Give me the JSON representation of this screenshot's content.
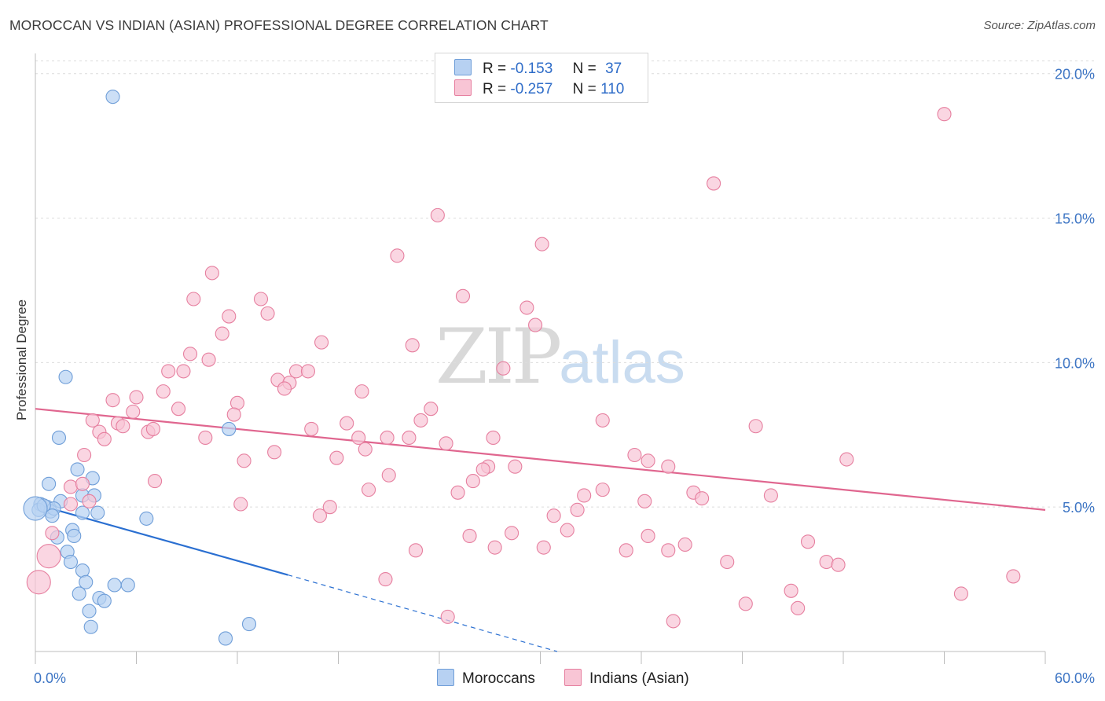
{
  "header": {
    "title": "MOROCCAN VS INDIAN (ASIAN) PROFESSIONAL DEGREE CORRELATION CHART",
    "source": "Source: ZipAtlas.com"
  },
  "watermark": {
    "zip": "ZIP",
    "atlas": "atlas"
  },
  "legend": {
    "r_label": "R =",
    "n_label": "N =",
    "rows": [
      {
        "r": "-0.153",
        "n": "37",
        "color": "#9fc3ee"
      },
      {
        "r": "-0.257",
        "n": "110",
        "color": "#f5b8cb"
      }
    ]
  },
  "bottom_legend": {
    "moroccans": "Moroccans",
    "indians": "Indians (Asian)"
  },
  "chart_data": {
    "type": "scatter",
    "title": "MOROCCAN VS INDIAN (ASIAN) PROFESSIONAL DEGREE CORRELATION CHART",
    "xlabel": "",
    "ylabel": "Professional Degree",
    "xlim": [
      0,
      60
    ],
    "ylim": [
      0,
      20.7
    ],
    "x_tick_labels": [
      "0.0%",
      "60.0%"
    ],
    "y_ticks": [
      5,
      10,
      15,
      20
    ],
    "y_tick_labels": [
      "5.0%",
      "10.0%",
      "15.0%",
      "20.0%"
    ],
    "grid": true,
    "series": [
      {
        "name": "Moroccans",
        "color": "#6f9ed8",
        "fill": "#b7d1f2",
        "points": [
          [
            4.6,
            19.2
          ],
          [
            1.8,
            9.5
          ],
          [
            1.4,
            7.4
          ],
          [
            11.5,
            7.7
          ],
          [
            2.5,
            6.3
          ],
          [
            0.8,
            5.8
          ],
          [
            3.4,
            6.0
          ],
          [
            2.8,
            5.4
          ],
          [
            3.5,
            5.4
          ],
          [
            1.5,
            5.2
          ],
          [
            0.3,
            5.1
          ],
          [
            0.7,
            5.0
          ],
          [
            0.2,
            4.9
          ],
          [
            0.9,
            4.85
          ],
          [
            1.1,
            4.95
          ],
          [
            0.5,
            5.05
          ],
          [
            1.0,
            4.7
          ],
          [
            2.8,
            4.8
          ],
          [
            3.7,
            4.8
          ],
          [
            6.6,
            4.6
          ],
          [
            2.2,
            4.2
          ],
          [
            1.3,
            3.95
          ],
          [
            2.3,
            4.0
          ],
          [
            1.9,
            3.45
          ],
          [
            2.1,
            3.1
          ],
          [
            2.8,
            2.8
          ],
          [
            3.0,
            2.4
          ],
          [
            4.7,
            2.3
          ],
          [
            5.5,
            2.3
          ],
          [
            2.6,
            2.0
          ],
          [
            3.8,
            1.85
          ],
          [
            4.1,
            1.75
          ],
          [
            3.2,
            1.4
          ],
          [
            3.3,
            0.85
          ],
          [
            12.7,
            0.95
          ],
          [
            11.3,
            0.45
          ]
        ],
        "big_points": [
          [
            0.0,
            4.95
          ]
        ],
        "trend": {
          "x0": 0,
          "y0": 5.1,
          "x1": 15,
          "y1": 2.65,
          "dash_x1": 31,
          "dash_y1": 0
        }
      },
      {
        "name": "Indians (Asian)",
        "color": "#e67f9f",
        "fill": "#f8c5d5",
        "points": [
          [
            54.0,
            18.6
          ],
          [
            40.3,
            16.2
          ],
          [
            23.9,
            15.1
          ],
          [
            30.1,
            14.1
          ],
          [
            21.5,
            13.7
          ],
          [
            10.5,
            13.1
          ],
          [
            25.4,
            12.3
          ],
          [
            9.4,
            12.2
          ],
          [
            13.4,
            12.2
          ],
          [
            29.2,
            11.9
          ],
          [
            11.5,
            11.6
          ],
          [
            13.8,
            11.7
          ],
          [
            29.7,
            11.3
          ],
          [
            11.1,
            11.0
          ],
          [
            17.0,
            10.7
          ],
          [
            22.4,
            10.6
          ],
          [
            9.2,
            10.3
          ],
          [
            10.3,
            10.1
          ],
          [
            7.9,
            9.7
          ],
          [
            8.8,
            9.7
          ],
          [
            15.5,
            9.7
          ],
          [
            16.2,
            9.7
          ],
          [
            27.8,
            9.8
          ],
          [
            14.4,
            9.4
          ],
          [
            15.1,
            9.3
          ],
          [
            14.8,
            9.1
          ],
          [
            7.6,
            9.0
          ],
          [
            19.4,
            9.0
          ],
          [
            6.0,
            8.8
          ],
          [
            4.6,
            8.7
          ],
          [
            12.0,
            8.6
          ],
          [
            23.5,
            8.4
          ],
          [
            5.8,
            8.3
          ],
          [
            8.5,
            8.4
          ],
          [
            11.8,
            8.2
          ],
          [
            22.9,
            8.0
          ],
          [
            3.4,
            8.0
          ],
          [
            4.9,
            7.9
          ],
          [
            18.5,
            7.9
          ],
          [
            33.7,
            8.0
          ],
          [
            42.8,
            7.8
          ],
          [
            3.8,
            7.6
          ],
          [
            5.2,
            7.8
          ],
          [
            6.7,
            7.6
          ],
          [
            7.0,
            7.7
          ],
          [
            16.4,
            7.7
          ],
          [
            10.1,
            7.4
          ],
          [
            4.1,
            7.35
          ],
          [
            19.2,
            7.4
          ],
          [
            20.9,
            7.4
          ],
          [
            22.2,
            7.4
          ],
          [
            24.4,
            7.2
          ],
          [
            27.2,
            7.4
          ],
          [
            19.6,
            7.0
          ],
          [
            14.2,
            6.9
          ],
          [
            17.9,
            6.7
          ],
          [
            2.9,
            6.8
          ],
          [
            35.6,
            6.8
          ],
          [
            12.4,
            6.6
          ],
          [
            36.4,
            6.6
          ],
          [
            48.2,
            6.65
          ],
          [
            26.9,
            6.4
          ],
          [
            26.6,
            6.3
          ],
          [
            28.5,
            6.4
          ],
          [
            37.6,
            6.4
          ],
          [
            21.0,
            6.1
          ],
          [
            7.1,
            5.9
          ],
          [
            26.0,
            5.9
          ],
          [
            2.1,
            5.7
          ],
          [
            2.8,
            5.8
          ],
          [
            19.8,
            5.6
          ],
          [
            25.1,
            5.5
          ],
          [
            33.7,
            5.6
          ],
          [
            39.1,
            5.5
          ],
          [
            39.6,
            5.3
          ],
          [
            43.7,
            5.4
          ],
          [
            32.6,
            5.4
          ],
          [
            36.2,
            5.2
          ],
          [
            2.1,
            5.1
          ],
          [
            3.2,
            5.2
          ],
          [
            12.2,
            5.1
          ],
          [
            17.5,
            5.0
          ],
          [
            30.8,
            4.7
          ],
          [
            32.2,
            4.9
          ],
          [
            16.9,
            4.7
          ],
          [
            28.3,
            4.1
          ],
          [
            25.8,
            4.0
          ],
          [
            31.6,
            4.2
          ],
          [
            36.4,
            4.0
          ],
          [
            1.0,
            4.1
          ],
          [
            30.2,
            3.6
          ],
          [
            27.3,
            3.6
          ],
          [
            38.6,
            3.7
          ],
          [
            45.9,
            3.8
          ],
          [
            22.6,
            3.5
          ],
          [
            35.1,
            3.5
          ],
          [
            37.6,
            3.5
          ],
          [
            41.1,
            3.1
          ],
          [
            47.0,
            3.1
          ],
          [
            47.7,
            3.0
          ],
          [
            20.8,
            2.5
          ],
          [
            58.1,
            2.6
          ],
          [
            44.9,
            2.1
          ],
          [
            55.0,
            2.0
          ],
          [
            42.2,
            1.65
          ],
          [
            45.3,
            1.5
          ],
          [
            24.5,
            1.2
          ],
          [
            37.9,
            1.05
          ]
        ],
        "big_points": [
          [
            0.8,
            3.3
          ],
          [
            0.2,
            2.4
          ]
        ],
        "trend": {
          "x0": 0,
          "y0": 8.4,
          "x1": 60,
          "y1": 4.9
        }
      }
    ]
  }
}
